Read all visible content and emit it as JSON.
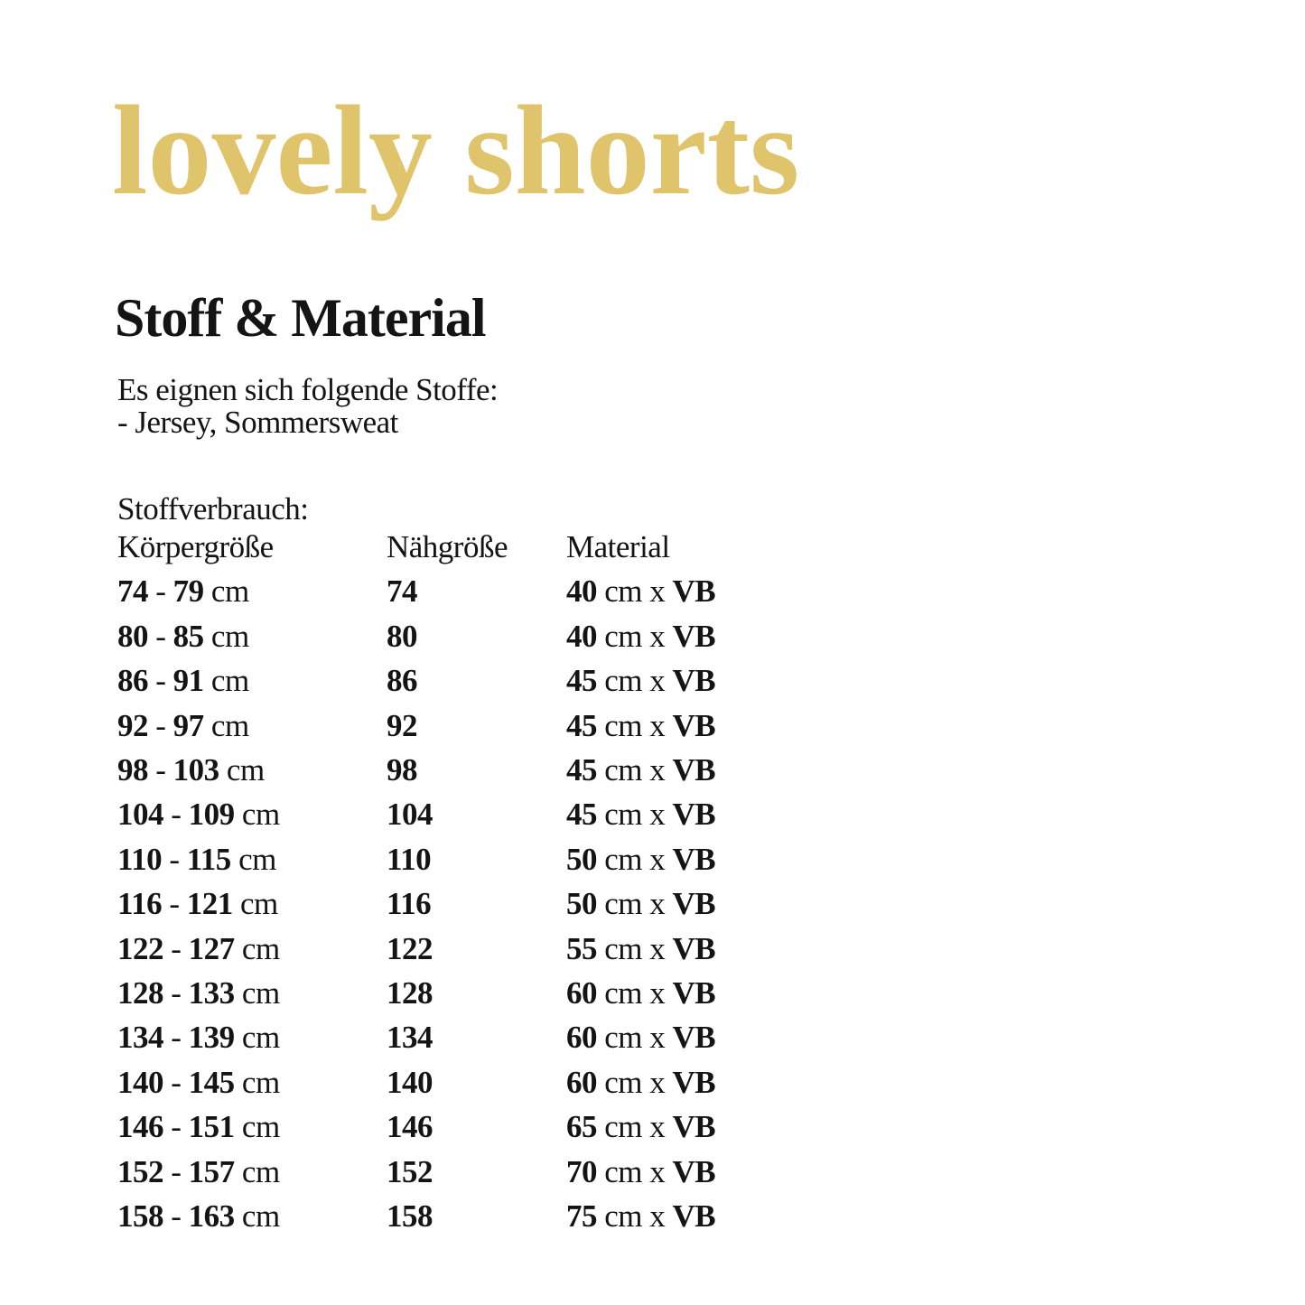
{
  "page": {
    "brand_title": "lovely shorts",
    "section_title": "Stoff & Material",
    "intro_lines": [
      "Es eignen sich folgende Stoffe:",
      "- Jersey, Sommersweat"
    ],
    "table_label": "Stoffverbrauch:",
    "accent_color": "#E0C46C",
    "text_color": "#141414"
  },
  "table": {
    "headers": [
      "Körpergröße",
      "Nähgröße",
      "Material"
    ],
    "rows": [
      [
        "74 - 79 cm",
        "74",
        "40 cm x VB"
      ],
      [
        "80 - 85 cm",
        "80",
        "40 cm x VB"
      ],
      [
        "86 - 91 cm",
        "86",
        "45 cm x VB"
      ],
      [
        "92 - 97 cm",
        "92",
        "45 cm x VB"
      ],
      [
        "98 - 103 cm",
        "98",
        "45 cm x VB"
      ],
      [
        "104 - 109 cm",
        "104",
        "45 cm x VB"
      ],
      [
        "110 - 115 cm",
        "110",
        "50 cm x VB"
      ],
      [
        "116 - 121 cm",
        "116",
        "50 cm x VB"
      ],
      [
        "122 - 127 cm",
        "122",
        "55 cm x VB"
      ],
      [
        "128 - 133 cm",
        "128",
        "60 cm x VB"
      ],
      [
        "134 - 139 cm",
        "134",
        "60 cm x VB"
      ],
      [
        "140 - 145 cm",
        "140",
        "60 cm x VB"
      ],
      [
        "146 - 151 cm",
        "146",
        "65 cm x VB"
      ],
      [
        "152 - 157 cm",
        "152",
        "70 cm x VB"
      ],
      [
        "158 - 163 cm",
        "158",
        "75 cm x VB"
      ]
    ]
  }
}
